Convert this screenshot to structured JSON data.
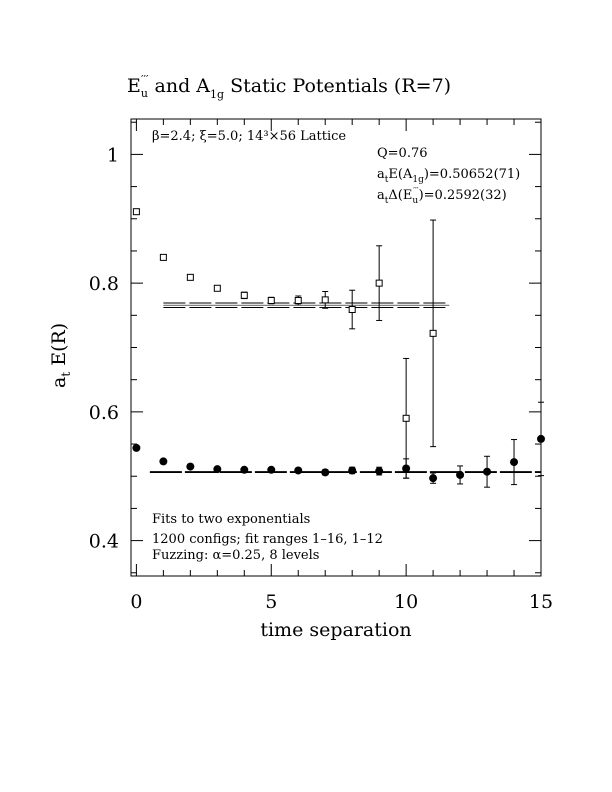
{
  "chart_data": {
    "type": "scatter",
    "title": {
      "main_left": "E",
      "main_left_sub": "u",
      "main_left_sup": "′′′",
      "main_mid": " and A",
      "main_mid_sub": "1g",
      "main_right": " Static Potentials (R=7)"
    },
    "xlabel": "time separation",
    "ylabel_main": "a",
    "ylabel_sub": "t",
    "ylabel_rest": " E(R)",
    "xlim": [
      -0.2,
      15
    ],
    "ylim": [
      0.345,
      1.055
    ],
    "xticks": [
      0,
      5,
      10,
      15
    ],
    "xtick_labels": [
      "0",
      "5",
      "10",
      "15"
    ],
    "yticks": [
      0.4,
      0.6,
      0.8,
      1.0
    ],
    "ytick_labels": [
      "0.4",
      "0.6",
      "0.8",
      "1"
    ],
    "annotations": {
      "lattice": "β=2.4; ξ=5.0; 14³×56 Lattice",
      "q": "Q=0.76",
      "energy_a1g_prefix": "a",
      "energy_a1g_t": "t",
      "energy_a1g_mid": "E(A",
      "energy_a1g_sub": "1g",
      "energy_a1g_val": ")=0.50652(71)",
      "delta_prefix": "a",
      "delta_t": "t",
      "delta_mid": "Δ(E",
      "delta_sub": "u",
      "delta_sup": "′′′",
      "delta_val": ")=0.2592(32)",
      "fit_line1": "Fits to two exponentials",
      "fit_line2": "1200 configs; fit ranges 1–16, 1–12",
      "fit_line3": "Fuzzing: α=0.25, 8 levels"
    },
    "series": [
      {
        "marker": "open-square",
        "points": [
          {
            "x": 0,
            "y": 0.911,
            "err": 0.003
          },
          {
            "x": 1,
            "y": 0.84,
            "err": 0.003
          },
          {
            "x": 2,
            "y": 0.809,
            "err": 0.004
          },
          {
            "x": 3,
            "y": 0.792,
            "err": 0.004
          },
          {
            "x": 4,
            "y": 0.781,
            "err": 0.005
          },
          {
            "x": 5,
            "y": 0.773,
            "err": 0.005
          },
          {
            "x": 6,
            "y": 0.773,
            "err": 0.007
          },
          {
            "x": 7,
            "y": 0.774,
            "err": 0.013
          },
          {
            "x": 8,
            "y": 0.759,
            "err": 0.03
          },
          {
            "x": 9,
            "y": 0.8,
            "err": 0.058
          },
          {
            "x": 10,
            "y": 0.59,
            "err": 0.093
          },
          {
            "x": 11,
            "y": 0.722,
            "err": 0.176
          }
        ],
        "fit": {
          "x_from": 1,
          "x_to": 11.6,
          "y": 0.7657,
          "band": 0.0035
        }
      },
      {
        "marker": "filled-circle",
        "points": [
          {
            "x": 0,
            "y": 0.544,
            "err": 0.002
          },
          {
            "x": 1,
            "y": 0.523,
            "err": 0.002
          },
          {
            "x": 2,
            "y": 0.515,
            "err": 0.002
          },
          {
            "x": 3,
            "y": 0.511,
            "err": 0.003
          },
          {
            "x": 4,
            "y": 0.51,
            "err": 0.003
          },
          {
            "x": 5,
            "y": 0.51,
            "err": 0.003
          },
          {
            "x": 6,
            "y": 0.509,
            "err": 0.003
          },
          {
            "x": 7,
            "y": 0.506,
            "err": 0.004
          },
          {
            "x": 8,
            "y": 0.509,
            "err": 0.005
          },
          {
            "x": 9,
            "y": 0.508,
            "err": 0.006
          },
          {
            "x": 10,
            "y": 0.512,
            "err": 0.015
          },
          {
            "x": 11,
            "y": 0.497,
            "err": 0.008
          },
          {
            "x": 12,
            "y": 0.502,
            "err": 0.014
          },
          {
            "x": 13,
            "y": 0.507,
            "err": 0.024
          },
          {
            "x": 14,
            "y": 0.522,
            "err": 0.035
          },
          {
            "x": 15,
            "y": 0.558,
            "err": 0.057
          }
        ],
        "fit": {
          "x_from": 0.5,
          "x_to": 15,
          "y": 0.5065,
          "band": 0.0007
        }
      }
    ]
  }
}
